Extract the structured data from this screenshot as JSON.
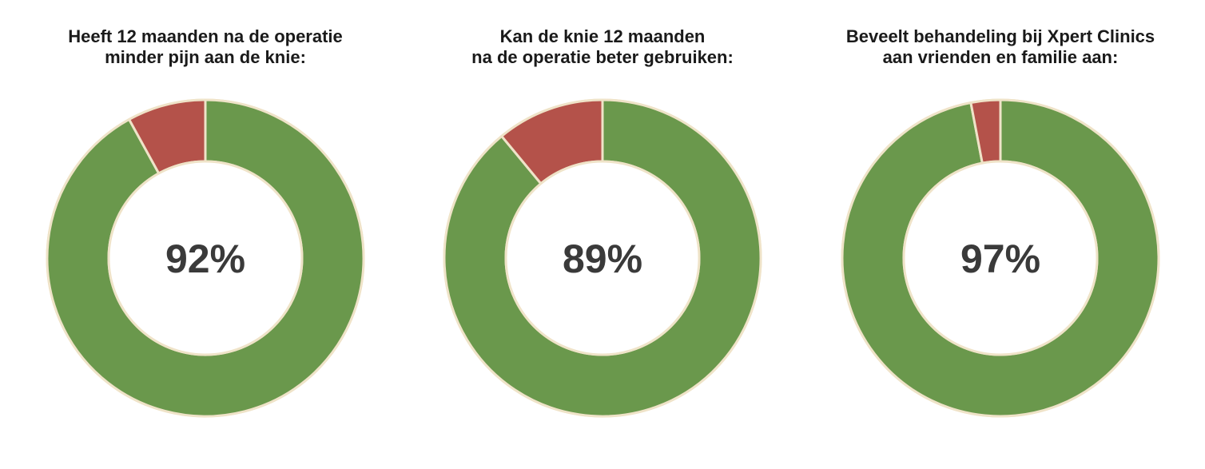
{
  "colors": {
    "positive": "#6a984c",
    "negative": "#b4524a",
    "stroke": "#efe3c8",
    "text": "#3a3a3a"
  },
  "chart_data": [
    {
      "type": "pie",
      "title": "Heeft 12 maanden na de operatie\nminder pijn aan de knie:",
      "center_label": "92%",
      "slices": [
        {
          "value": 92,
          "color": "#6a984c"
        },
        {
          "value": 8,
          "color": "#b4524a"
        }
      ]
    },
    {
      "type": "pie",
      "title": "Kan de knie 12 maanden\nna de operatie beter gebruiken:",
      "center_label": "89%",
      "slices": [
        {
          "value": 89,
          "color": "#6a984c"
        },
        {
          "value": 11,
          "color": "#b4524a"
        }
      ]
    },
    {
      "type": "pie",
      "title": "Beveelt behandeling bij Xpert Clinics\naan vrienden en familie aan:",
      "center_label": "97%",
      "slices": [
        {
          "value": 97,
          "color": "#6a984c"
        },
        {
          "value": 3,
          "color": "#b4524a"
        }
      ]
    }
  ]
}
